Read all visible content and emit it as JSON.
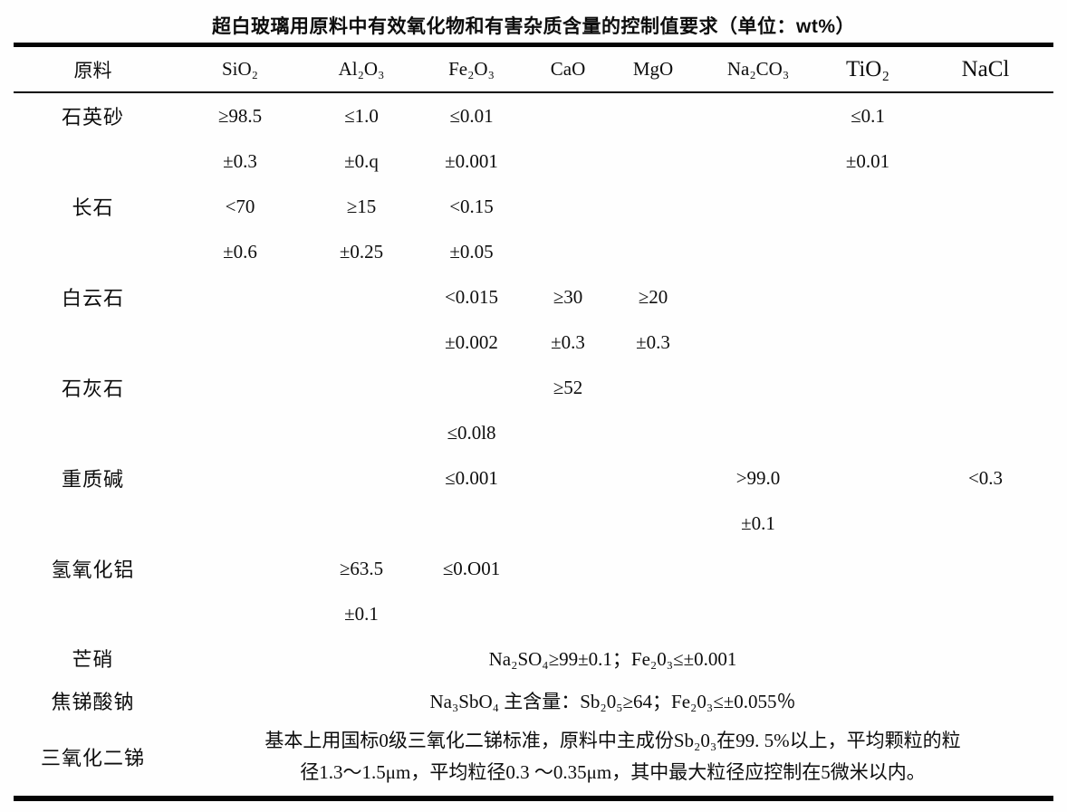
{
  "title": "超白玻璃用原料中有效氧化物和有害杂质含量的控制值要求（单位：wt%）",
  "table": {
    "headers": [
      "原料",
      "SiO₂",
      "Al₂O₃",
      "Fe₂O₃",
      "CaO",
      "MgO",
      "Na₂CO₃",
      "TiO₂",
      "NaCl"
    ],
    "rows": [
      [
        "石英砂",
        "≥98.5",
        "≤1.0",
        "≤0.01",
        "",
        "",
        "",
        "≤0.1",
        ""
      ],
      [
        "",
        "±0.3",
        "±0.q",
        "±0.001",
        "",
        "",
        "",
        "±0.01",
        ""
      ],
      [
        "长石",
        "<70",
        "≥15",
        "<0.15",
        "",
        "",
        "",
        "",
        ""
      ],
      [
        "",
        "±0.6",
        "±0.25",
        "±0.05",
        "",
        "",
        "",
        "",
        ""
      ],
      [
        "白云石",
        "",
        "",
        "<0.015",
        "≥30",
        "≥20",
        "",
        "",
        ""
      ],
      [
        "",
        "",
        "",
        "±0.002",
        "±0.3",
        "±0.3",
        "",
        "",
        ""
      ],
      [
        "石灰石",
        "",
        "",
        "",
        "≥52",
        "",
        "",
        "",
        ""
      ],
      [
        "",
        "",
        "",
        "≤0.0l8",
        "",
        "",
        "",
        "",
        ""
      ],
      [
        "重质碱",
        "",
        "",
        "≤0.001",
        "",
        "",
        ">99.0",
        "",
        "<0.3"
      ],
      [
        "",
        "",
        "",
        "",
        "",
        "",
        "±0.1",
        "",
        ""
      ],
      [
        "氢氧化铝",
        "",
        "≥63.5",
        "≤0.O01",
        "",
        "",
        "",
        "",
        ""
      ],
      [
        "",
        "",
        "±0.1",
        "",
        "",
        "",
        "",
        "",
        ""
      ]
    ],
    "span_rows": [
      {
        "label": "芒硝",
        "text": "Na₂SO₄≥99±0.1；Fe₂0₃≤±0.001"
      },
      {
        "label": "焦锑酸钠",
        "text": "Na₃SbO₄ 主含量：Sb₂0₅≥64；Fe₂0₃≤±0.055％"
      },
      {
        "label": "三氧化二锑",
        "text": "基本上用国标0级三氧化二锑标准，原料中主成份Sb₂0₃在99. 5%以上，平均颗粒的粒\n径1.3～1.5μm，平均粒径0.3 ～0.35μm，其中最大粒径应控制在5微米以内。"
      }
    ]
  }
}
